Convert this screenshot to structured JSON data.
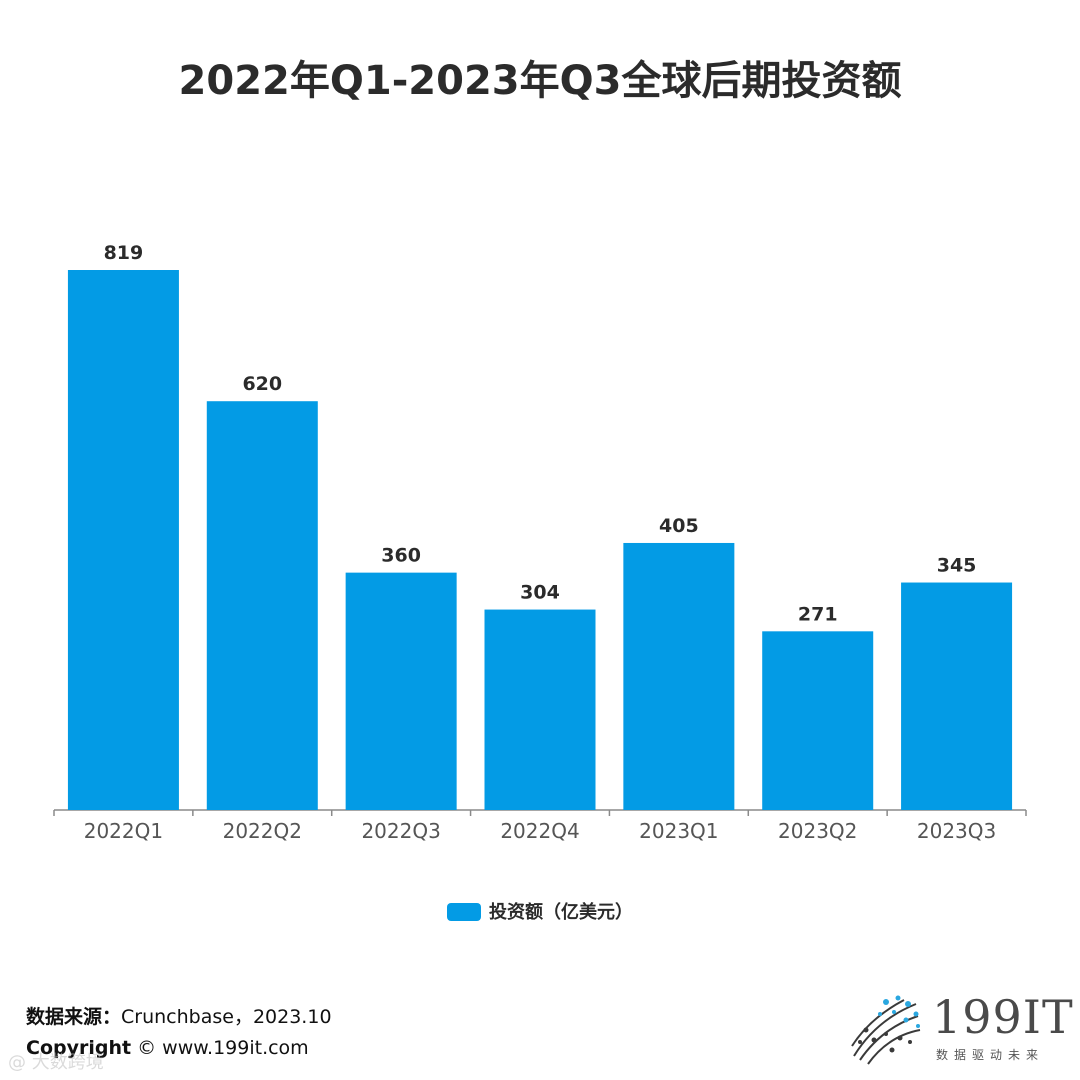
{
  "chart_data": {
    "type": "bar",
    "title": "2022年Q1-2023年Q3全球后期投资额",
    "categories": [
      "2022Q1",
      "2022Q2",
      "2022Q3",
      "2022Q4",
      "2023Q1",
      "2023Q2",
      "2023Q3"
    ],
    "series": [
      {
        "name": "投资额（亿美元）",
        "values": [
          819,
          620,
          360,
          304,
          405,
          271,
          345
        ]
      }
    ],
    "data_labels": [
      "819",
      "620",
      "360",
      "304",
      "405",
      "271",
      "345"
    ],
    "ylim": [
      0,
      900
    ],
    "grid": false,
    "legend_position": "bottom",
    "bar_color": "#039be5"
  },
  "footer": {
    "source_label": "数据来源：",
    "source_value": "Crunchbase，2023.10",
    "copyright_label": "Copyright",
    "copyright_value": " © www.199it.com"
  },
  "watermark": "@ 大数跨境",
  "logo": {
    "text": "199IT",
    "sub": "数据驱动未来",
    "icon": "dot-globe-icon"
  }
}
